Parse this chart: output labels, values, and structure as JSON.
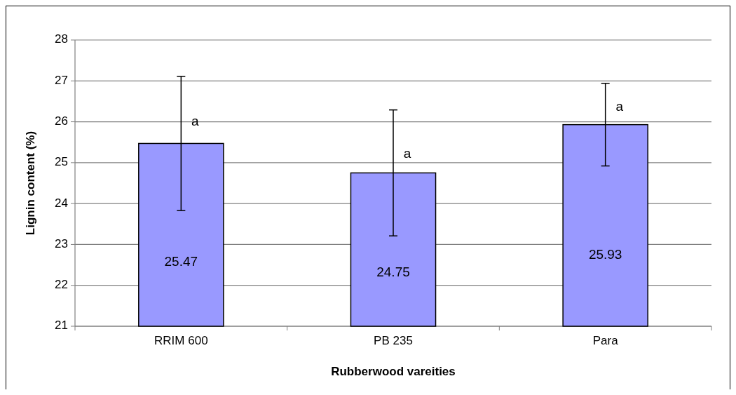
{
  "chart_data": {
    "type": "bar",
    "xlabel": "Rubberwood vareities",
    "ylabel": "Lignin content (%)",
    "categories": [
      "RRIM 600",
      "PB 235",
      "Para"
    ],
    "series": [
      {
        "color": "#9999ff",
        "values": [
          25.47,
          24.75,
          25.93
        ],
        "errors": [
          1.64,
          1.54,
          1.01
        ]
      }
    ],
    "ylim": [
      21,
      28
    ],
    "yticks": [
      21,
      22,
      23,
      24,
      25,
      26,
      27,
      28
    ],
    "grid": "y",
    "data_labels": true,
    "annotations": [
      {
        "text": "a",
        "x": "RRIM 600",
        "y": 26
      },
      {
        "text": "a",
        "x": "PB 235",
        "y": 25.2
      },
      {
        "text": "a",
        "x": "Para",
        "y": 26.35
      }
    ]
  }
}
